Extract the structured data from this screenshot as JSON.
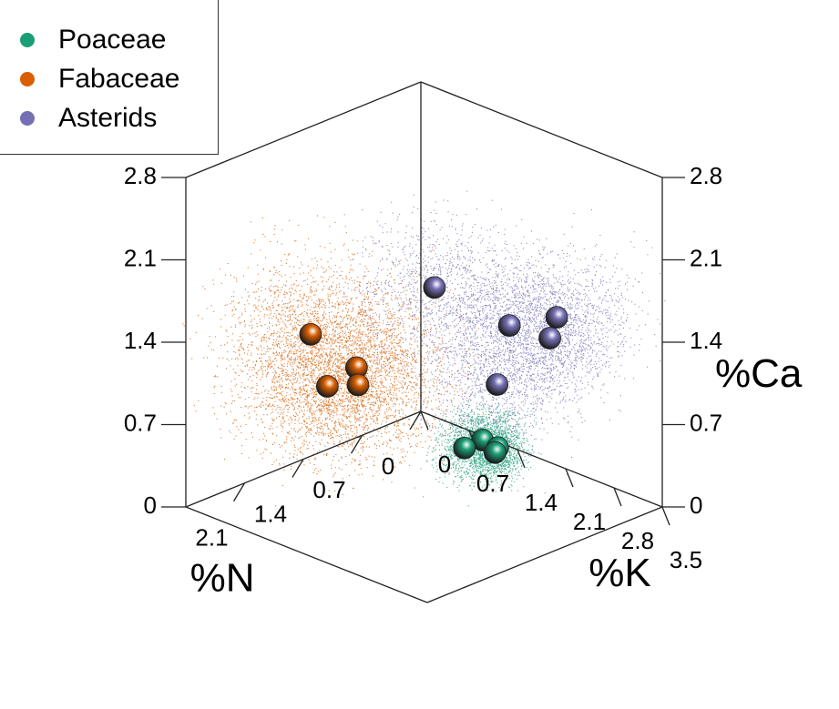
{
  "chart_data": {
    "type": "scatter",
    "dimensions": 3,
    "axes": {
      "x": {
        "label": "%K",
        "ticks": [
          "0",
          "0.7",
          "1.4",
          "2.1",
          "2.8",
          "3.5"
        ],
        "lim": [
          0,
          3.5
        ]
      },
      "y": {
        "label": "%N",
        "ticks": [
          "0",
          "0.7",
          "1.4",
          "2.1"
        ],
        "lim": [
          0,
          2.8
        ]
      },
      "z": {
        "label": "%Ca",
        "ticks": [
          "0",
          "0.7",
          "1.4",
          "2.1",
          "2.8"
        ],
        "lim": [
          0,
          2.8
        ]
      }
    },
    "legend_position": "top-left",
    "series": [
      {
        "name": "Poaceae",
        "color": "#1b9e77",
        "points": [
          [
            1.5,
            0.5,
            0.25
          ],
          [
            1.6,
            0.4,
            0.18
          ],
          [
            1.3,
            0.55,
            0.15
          ],
          [
            1.5,
            0.35,
            0.1
          ]
        ]
      },
      {
        "name": "Fabaceae",
        "color": "#d95f02",
        "points": [
          [
            1.2,
            2.3,
            1.6
          ],
          [
            1.5,
            2.0,
            1.3
          ],
          [
            1.2,
            2.1,
            1.1
          ],
          [
            1.4,
            1.9,
            1.1
          ]
        ]
      },
      {
        "name": "Asterids",
        "color": "#7570b3",
        "points": [
          [
            1.9,
            1.4,
            1.9
          ],
          [
            2.5,
            1.0,
            1.6
          ],
          [
            2.7,
            0.6,
            1.6
          ],
          [
            2.6,
            0.6,
            1.4
          ],
          [
            2.2,
            0.9,
            1.0
          ]
        ]
      }
    ]
  }
}
